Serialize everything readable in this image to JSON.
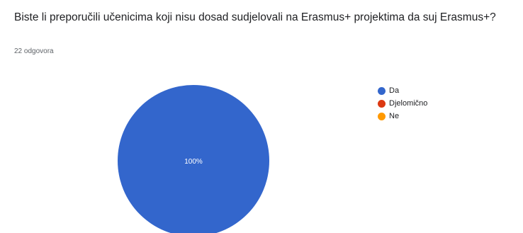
{
  "question": "Biste li preporučili učenicima koji nisu dosad sudjelovali na Erasmus+ projektima da suj Erasmus+?",
  "response_count": "22 odgovora",
  "chart_data": {
    "type": "pie",
    "title": "",
    "legend_position": "top-right",
    "slices": [
      {
        "label": "Da",
        "value": 100,
        "color": "#3366cc"
      },
      {
        "label": "Djelomično",
        "value": 0,
        "color": "#dc3912"
      },
      {
        "label": "Ne",
        "value": 0,
        "color": "#ff9900"
      }
    ],
    "data_labels": [
      "100%",
      "",
      ""
    ]
  }
}
